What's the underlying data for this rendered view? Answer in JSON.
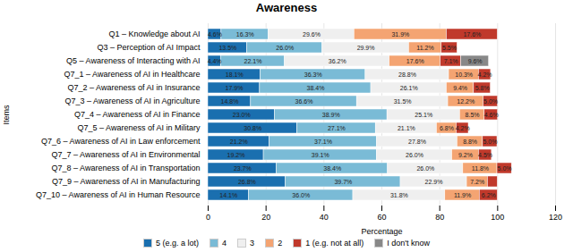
{
  "chart_data": {
    "type": "bar",
    "orientation": "horizontal",
    "stacked": true,
    "title": "Awareness",
    "xlabel": "Percentage",
    "ylabel": "Items",
    "categories": [
      "Q1 – Knowledge about AI",
      "Q3 – Perception of AI Impact",
      "Q5 – Awareness of Interacting with AI",
      "Q7_1 – Awareness of AI in Healthcare",
      "Q7_2 – Awareness of AI in Insurance",
      "Q7_3 – Awareness of AI in Agriculture",
      "Q7_4 – Awareness of AI in Finance",
      "Q7_5 – Awareness of AI in Military",
      "Q7_6 – Awareness of AI in Law enforcement",
      "Q7_7 – Awareness of AI in Environmental",
      "Q7_8 – Awareness of AI in Transportation",
      "Q7_9 – Awareness of AI in Manufacturing",
      "Q7_10 – Awareness of AI in Human Resource"
    ],
    "series": [
      {
        "name": "5 (e.g. a lot)",
        "color": "#1a6faf",
        "values": [
          4.6,
          13.5,
          4.4,
          18.1,
          17.9,
          14.8,
          23.0,
          30.8,
          21.2,
          19.2,
          23.7,
          26.8,
          14.1
        ],
        "value_labels": [
          "4.6%",
          "13.5%",
          "4.4%",
          "18.1%",
          "17.9%",
          "14.8%",
          "23.0%",
          "30.8%",
          "21.2%",
          "19.2%",
          "23.7%",
          "26.8%",
          "14.1%"
        ]
      },
      {
        "name": "4",
        "color": "#7abbd6",
        "values": [
          16.3,
          26.0,
          22.1,
          36.3,
          38.4,
          36.6,
          38.9,
          27.1,
          37.1,
          39.1,
          38.4,
          39.7,
          36.0
        ],
        "value_labels": [
          "16.3%",
          "26.0%",
          "22.1%",
          "36.3%",
          "38.4%",
          "36.6%",
          "38.9%",
          "27.1%",
          "37.1%",
          "39.1%",
          "38.4%",
          "39.7%",
          "36.0%"
        ]
      },
      {
        "name": "3",
        "color": "#efefef",
        "values": [
          29.6,
          29.9,
          36.2,
          28.8,
          26.1,
          31.5,
          25.1,
          21.1,
          27.8,
          26.0,
          26.0,
          22.9,
          31.8
        ],
        "value_labels": [
          "29.6%",
          "29.9%",
          "36.2%",
          "28.8%",
          "26.1%",
          "31.5%",
          "25.1%",
          "21.1%",
          "27.8%",
          "26.0%",
          "26.0%",
          "22.9%",
          "31.8%"
        ]
      },
      {
        "name": "2",
        "color": "#f4a472",
        "values": [
          31.9,
          11.2,
          17.6,
          10.3,
          9.4,
          12.2,
          8.5,
          6.8,
          8.8,
          9.2,
          11.8,
          7.2,
          11.9
        ],
        "value_labels": [
          "31.9%",
          "11.2%",
          "17.6%",
          "10.3%",
          "9.4%",
          "12.2%",
          "8.5%",
          "6.8%",
          "8.8%",
          "9.2%",
          "11.8%",
          "7.2%",
          "11.9%"
        ]
      },
      {
        "name": "1 (e.g. not at all)",
        "color": "#c0392b",
        "values": [
          17.6,
          5.5,
          7.1,
          4.2,
          5.8,
          5.0,
          4.6,
          4.2,
          5.0,
          4.5,
          5.0,
          3.4,
          6.2
        ],
        "value_labels": [
          "17.6%",
          "5.5%",
          "7.1%",
          "4.2%",
          "5.8%",
          "5.0%",
          "4.6%",
          "4.2%",
          "5.0%",
          "4.5%",
          "5.0%",
          null,
          "6.2%"
        ]
      },
      {
        "name": "I don't know",
        "color": "#888888",
        "values": [
          0.0,
          0.0,
          9.6,
          0.0,
          0.0,
          0.0,
          0.0,
          0.0,
          0.0,
          0.0,
          0.0,
          0.0,
          0.0
        ],
        "value_labels": [
          null,
          null,
          "9.6%",
          null,
          null,
          null,
          null,
          null,
          null,
          null,
          null,
          null,
          null
        ]
      }
    ],
    "xlim": [
      0,
      120
    ],
    "xticks": [
      0,
      20,
      40,
      60,
      80,
      100,
      120
    ],
    "grid": true,
    "legend": "bottom",
    "data_labels": true
  }
}
